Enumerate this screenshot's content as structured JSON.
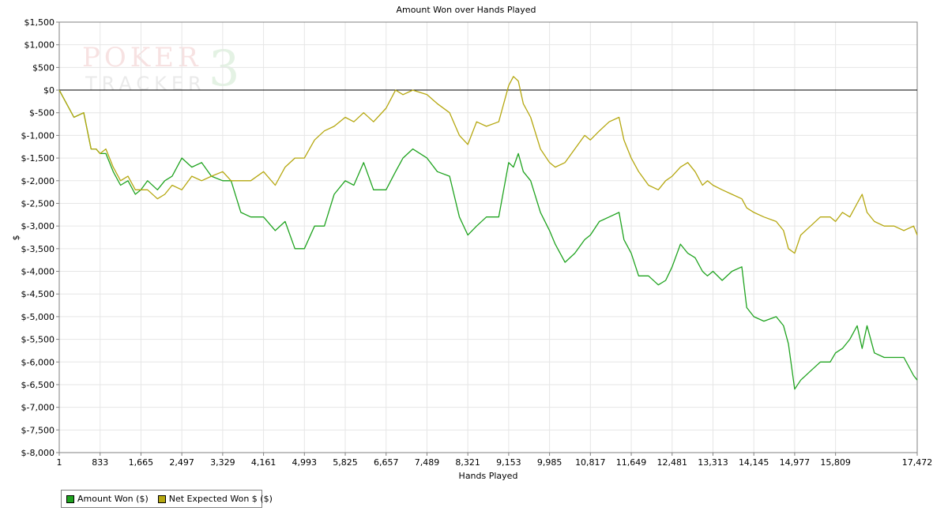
{
  "chart_data": {
    "type": "line",
    "title": "Amount Won over Hands Played",
    "xlabel": "Hands Played",
    "ylabel": "$",
    "xlim": [
      1,
      17472
    ],
    "ylim": [
      -8000,
      1500
    ],
    "x_tick_values": [
      1,
      833,
      1665,
      2497,
      3329,
      4161,
      4993,
      5825,
      6657,
      7489,
      8321,
      9153,
      9985,
      10817,
      11649,
      12481,
      13313,
      14145,
      14977,
      15809,
      17472
    ],
    "x_tick_labels": [
      "1",
      "833",
      "1,665",
      "2,497",
      "3,329",
      "4,161",
      "4,993",
      "5,825",
      "6,657",
      "7,489",
      "8,321",
      "9,153",
      "9,985",
      "10,817",
      "11,649",
      "12,481",
      "13,313",
      "14,145",
      "14,977",
      "15,809",
      "17,472"
    ],
    "y_tick_values": [
      1500,
      1000,
      500,
      0,
      -500,
      -1000,
      -1500,
      -2000,
      -2500,
      -3000,
      -3500,
      -4000,
      -4500,
      -5000,
      -5500,
      -6000,
      -6500,
      -7000,
      -7500,
      -8000
    ],
    "y_tick_labels": [
      "$1,500",
      "$1,000",
      "$500",
      "$0",
      "$-500",
      "$-1,000",
      "$-1,500",
      "$-2,000",
      "$-2,500",
      "$-3,000",
      "$-3,500",
      "$-4,000",
      "$-4,500",
      "$-5,000",
      "$-5,500",
      "$-6,000",
      "$-6,500",
      "$-7,000",
      "$-7,500",
      "$-8,000"
    ],
    "grid": true,
    "legend_position": "bottom-left",
    "series": [
      {
        "name": "Amount Won ($)",
        "color": "#1fa31f",
        "x": [
          1,
          150,
          300,
          500,
          650,
          750,
          833,
          950,
          1100,
          1250,
          1400,
          1550,
          1665,
          1800,
          2000,
          2150,
          2300,
          2497,
          2700,
          2900,
          3100,
          3329,
          3500,
          3700,
          3900,
          4161,
          4400,
          4600,
          4800,
          4993,
          5200,
          5400,
          5600,
          5825,
          6000,
          6200,
          6400,
          6657,
          6850,
          7000,
          7200,
          7489,
          7700,
          7950,
          8150,
          8321,
          8500,
          8700,
          8950,
          9153,
          9250,
          9350,
          9450,
          9600,
          9800,
          9985,
          10100,
          10300,
          10500,
          10700,
          10817,
          11000,
          11200,
          11400,
          11500,
          11649,
          11800,
          12000,
          12200,
          12350,
          12481,
          12650,
          12800,
          12950,
          13100,
          13200,
          13313,
          13500,
          13700,
          13900,
          14000,
          14145,
          14350,
          14600,
          14750,
          14850,
          14977,
          15100,
          15300,
          15500,
          15700,
          15809,
          15950,
          16100,
          16250,
          16350,
          16450,
          16600,
          16800,
          17000,
          17200,
          17400,
          17472
        ],
        "values": [
          0,
          -300,
          -600,
          -500,
          -1300,
          -1300,
          -1400,
          -1400,
          -1800,
          -2100,
          -2000,
          -2300,
          -2200,
          -2000,
          -2200,
          -2000,
          -1900,
          -1500,
          -1700,
          -1600,
          -1900,
          -2000,
          -2000,
          -2700,
          -2800,
          -2800,
          -3100,
          -2900,
          -3500,
          -3500,
          -3000,
          -3000,
          -2300,
          -2000,
          -2100,
          -1600,
          -2200,
          -2200,
          -1800,
          -1500,
          -1300,
          -1500,
          -1800,
          -1900,
          -2800,
          -3200,
          -3000,
          -2800,
          -2800,
          -1600,
          -1700,
          -1400,
          -1800,
          -2000,
          -2700,
          -3100,
          -3400,
          -3800,
          -3600,
          -3300,
          -3200,
          -2900,
          -2800,
          -2700,
          -3300,
          -3600,
          -4100,
          -4100,
          -4300,
          -4200,
          -3900,
          -3400,
          -3600,
          -3700,
          -4000,
          -4100,
          -4000,
          -4200,
          -4000,
          -3900,
          -4800,
          -5000,
          -5100,
          -5000,
          -5200,
          -5600,
          -6600,
          -6400,
          -6200,
          -6000,
          -6000,
          -5800,
          -5700,
          -5500,
          -5200,
          -5700,
          -5200,
          -5800,
          -5900,
          -5900,
          -5900,
          -6300,
          -6400
        ]
      },
      {
        "name": "Net Expected Won $ ($)",
        "color": "#b5a70f",
        "x": [
          1,
          150,
          300,
          500,
          650,
          750,
          833,
          950,
          1100,
          1250,
          1400,
          1550,
          1665,
          1800,
          2000,
          2150,
          2300,
          2497,
          2700,
          2900,
          3100,
          3329,
          3500,
          3700,
          3900,
          4161,
          4400,
          4600,
          4800,
          4993,
          5200,
          5400,
          5600,
          5825,
          6000,
          6200,
          6400,
          6657,
          6850,
          7000,
          7200,
          7489,
          7700,
          7950,
          8150,
          8321,
          8500,
          8700,
          8950,
          9153,
          9250,
          9350,
          9450,
          9600,
          9800,
          9985,
          10100,
          10300,
          10500,
          10700,
          10817,
          11000,
          11200,
          11400,
          11500,
          11649,
          11800,
          12000,
          12200,
          12350,
          12481,
          12650,
          12800,
          12950,
          13100,
          13200,
          13313,
          13500,
          13700,
          13900,
          14000,
          14145,
          14350,
          14600,
          14750,
          14850,
          14977,
          15100,
          15300,
          15500,
          15700,
          15809,
          15950,
          16100,
          16250,
          16350,
          16450,
          16600,
          16800,
          17000,
          17200,
          17400,
          17472
        ],
        "values": [
          0,
          -300,
          -600,
          -500,
          -1300,
          -1300,
          -1400,
          -1300,
          -1700,
          -2000,
          -1900,
          -2200,
          -2200,
          -2200,
          -2400,
          -2300,
          -2100,
          -2200,
          -1900,
          -2000,
          -1900,
          -1800,
          -2000,
          -2000,
          -2000,
          -1800,
          -2100,
          -1700,
          -1500,
          -1500,
          -1100,
          -900,
          -800,
          -600,
          -700,
          -500,
          -700,
          -400,
          0,
          -100,
          0,
          -100,
          -300,
          -500,
          -1000,
          -1200,
          -700,
          -800,
          -700,
          100,
          300,
          200,
          -300,
          -600,
          -1300,
          -1600,
          -1700,
          -1600,
          -1300,
          -1000,
          -1100,
          -900,
          -700,
          -600,
          -1100,
          -1500,
          -1800,
          -2100,
          -2200,
          -2000,
          -1900,
          -1700,
          -1600,
          -1800,
          -2100,
          -2000,
          -2100,
          -2200,
          -2300,
          -2400,
          -2600,
          -2700,
          -2800,
          -2900,
          -3100,
          -3500,
          -3600,
          -3200,
          -3000,
          -2800,
          -2800,
          -2900,
          -2700,
          -2800,
          -2500,
          -2300,
          -2700,
          -2900,
          -3000,
          -3000,
          -3100,
          -3000,
          -3200
        ]
      }
    ]
  },
  "watermark": {
    "line1": "POKER",
    "digit": "3",
    "line2": "TRACKER"
  }
}
